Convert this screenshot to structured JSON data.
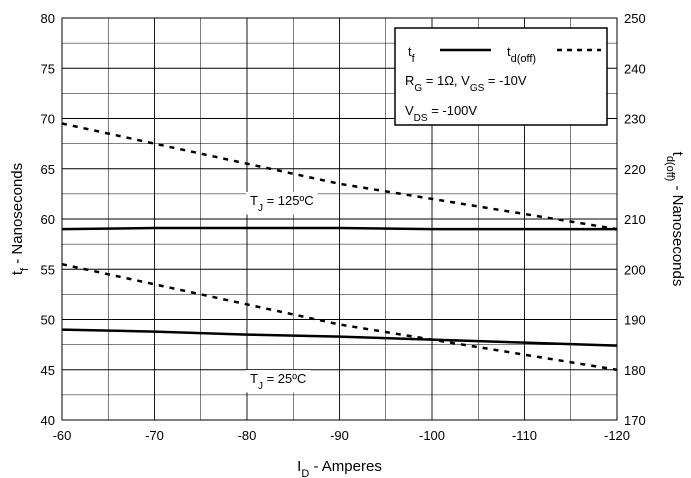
{
  "chart_data": {
    "type": "line",
    "title": "",
    "x": [
      -60,
      -70,
      -80,
      -90,
      -100,
      -110,
      -120
    ],
    "x_ticks": [
      "-60",
      "-70",
      "-80",
      "-90",
      "-100",
      "-110",
      "-120"
    ],
    "xlim": [
      -60,
      -120
    ],
    "xlabel": {
      "main": "I",
      "sub": "D",
      "rest": " - Amperes"
    },
    "y_left": {
      "label": {
        "main": "t",
        "sub": "f",
        "rest": " - Nanoseconds"
      },
      "ylim": [
        40,
        80
      ],
      "ticks": [
        "40",
        "45",
        "50",
        "55",
        "60",
        "65",
        "70",
        "75",
        "80"
      ]
    },
    "y_right": {
      "label": {
        "main": "t",
        "sub": "d(off)",
        "rest": " - Nanoseconds"
      },
      "ylim": [
        170,
        250
      ],
      "ticks": [
        "170",
        "180",
        "190",
        "200",
        "210",
        "220",
        "230",
        "240",
        "250"
      ]
    },
    "series": [
      {
        "name": "tf",
        "axis": "left",
        "style": "solid",
        "condition": "TJ = 125ºC",
        "values": [
          59.0,
          59.1,
          59.1,
          59.1,
          59.0,
          59.0,
          59.0
        ]
      },
      {
        "name": "tf",
        "axis": "left",
        "style": "solid",
        "condition": "TJ = 25ºC",
        "values": [
          49.0,
          48.8,
          48.5,
          48.3,
          48.0,
          47.7,
          47.4
        ]
      },
      {
        "name": "td(off)",
        "axis": "right",
        "style": "dashed",
        "condition": "TJ = 125ºC",
        "values": [
          229,
          225,
          221,
          217,
          214,
          211,
          208
        ]
      },
      {
        "name": "td(off)",
        "axis": "right",
        "style": "dashed",
        "condition": "TJ = 25ºC",
        "values": [
          201,
          197,
          193,
          189,
          186,
          183,
          180
        ]
      }
    ],
    "annotations": [
      {
        "id": "tj125",
        "main": "T",
        "sub": "J",
        "rest": " = 125ºC"
      },
      {
        "id": "tj25",
        "main": "T",
        "sub": "J",
        "rest": " = 25ºC"
      }
    ],
    "legend": {
      "position": "top-right",
      "entries": [
        {
          "main": "t",
          "sub": "f",
          "style": "solid"
        },
        {
          "main": "t",
          "sub": "d(off)",
          "style": "dashed"
        }
      ],
      "conditions": [
        {
          "parts": [
            {
              "t": "R"
            },
            {
              "t": "G",
              "sub": true
            },
            {
              "t": " = 1Ω,  V"
            },
            {
              "t": "GS",
              "sub": true
            },
            {
              "t": " = -10V"
            }
          ]
        },
        {
          "parts": [
            {
              "t": "V"
            },
            {
              "t": "DS",
              "sub": true
            },
            {
              "t": " = -100V"
            }
          ]
        }
      ]
    },
    "grid": true
  }
}
